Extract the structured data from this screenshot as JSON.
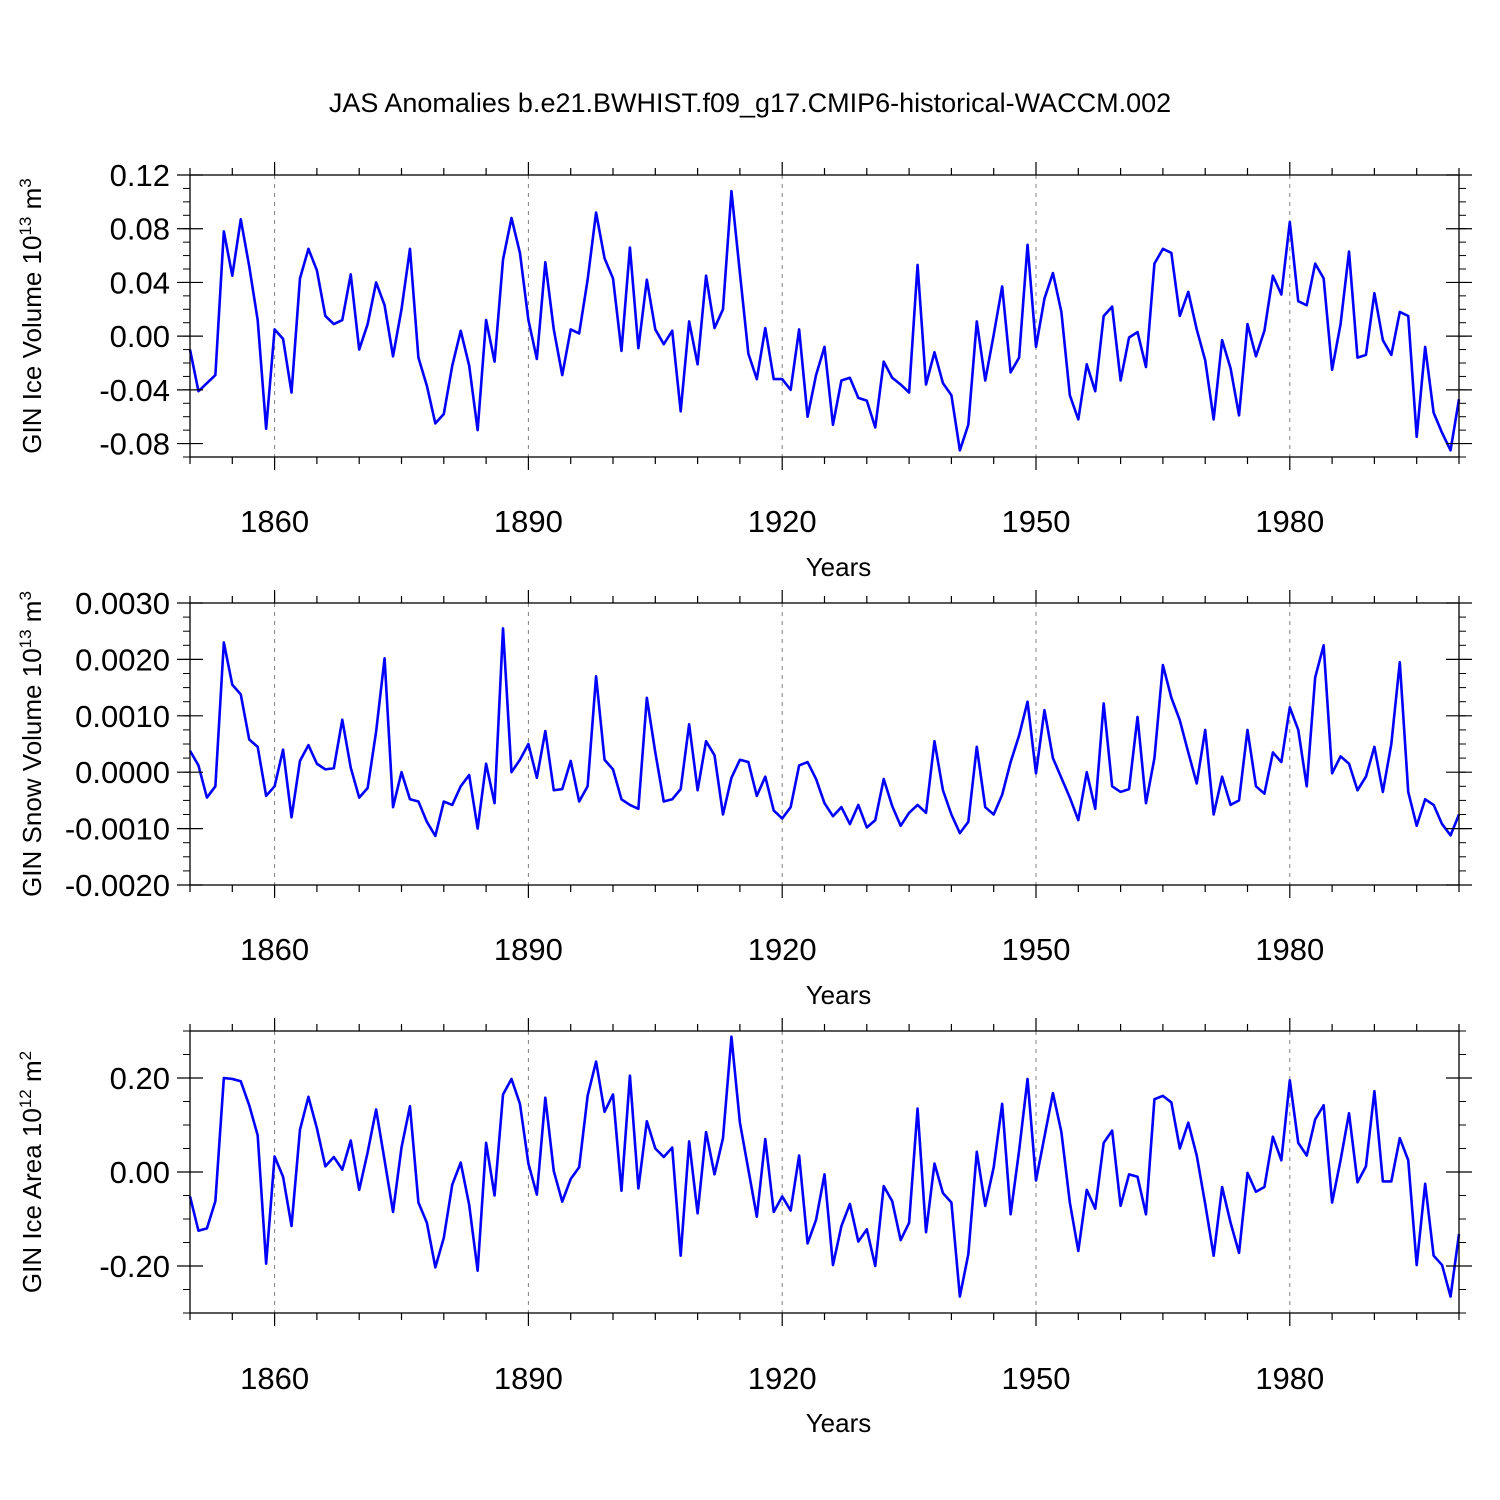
{
  "figure_title": "JAS Anomalies b.e21.BWHIST.f09_g17.CMIP6-historical-WACCM.002",
  "colors": {
    "line": "#0000ff",
    "axis": "#000000",
    "grid": "#808080",
    "background": "#ffffff"
  },
  "chart_data": [
    {
      "type": "line",
      "name": "ice-volume",
      "xlabel": "Years",
      "ylabel_text": "GIN Ice Volume 10",
      "ylabel_sup": "13",
      "ylabel_unit": " m",
      "ylabel_unit_sup": "3",
      "xlim": [
        1850,
        2000
      ],
      "ylim": [
        -0.09,
        0.12
      ],
      "x_ticks": [
        1860,
        1890,
        1920,
        1950,
        1980
      ],
      "x_tick_labels": [
        "1860",
        "1890",
        "1920",
        "1950",
        "1980"
      ],
      "y_ticks": [
        0.12,
        0.08,
        0.04,
        0.0,
        -0.04,
        -0.08
      ],
      "y_tick_labels": [
        "0.12",
        "0.08",
        "0.04",
        "0.00",
        "-0.04",
        "-0.08"
      ],
      "x_start": 1850,
      "values": [
        -0.01,
        -0.041,
        -0.035,
        -0.029,
        0.078,
        0.045,
        0.087,
        0.052,
        0.012,
        -0.069,
        0.005,
        -0.002,
        -0.042,
        0.043,
        0.065,
        0.049,
        0.015,
        0.009,
        0.012,
        0.046,
        -0.01,
        0.009,
        0.04,
        0.023,
        -0.015,
        0.02,
        0.065,
        -0.016,
        -0.037,
        -0.065,
        -0.058,
        -0.022,
        0.004,
        -0.022,
        -0.07,
        0.012,
        -0.019,
        0.057,
        0.088,
        0.062,
        0.012,
        -0.017,
        0.055,
        0.005,
        -0.029,
        0.005,
        0.002,
        0.042,
        0.092,
        0.058,
        0.043,
        -0.011,
        0.066,
        -0.009,
        0.042,
        0.005,
        -0.006,
        0.004,
        -0.056,
        0.011,
        -0.021,
        0.045,
        0.006,
        0.02,
        0.108,
        0.047,
        -0.013,
        -0.032,
        0.006,
        -0.032,
        -0.032,
        -0.04,
        0.005,
        -0.06,
        -0.029,
        -0.008,
        -0.066,
        -0.033,
        -0.031,
        -0.046,
        -0.048,
        -0.068,
        -0.019,
        -0.031,
        -0.036,
        -0.042,
        0.053,
        -0.036,
        -0.012,
        -0.035,
        -0.044,
        -0.085,
        -0.066,
        0.011,
        -0.033,
        0.001,
        0.037,
        -0.027,
        -0.016,
        0.068,
        -0.008,
        0.028,
        0.047,
        0.018,
        -0.044,
        -0.062,
        -0.021,
        -0.041,
        0.015,
        0.022,
        -0.033,
        -0.001,
        0.003,
        -0.023,
        0.054,
        0.065,
        0.062,
        0.015,
        0.033,
        0.005,
        -0.018,
        -0.062,
        -0.003,
        -0.024,
        -0.059,
        0.009,
        -0.015,
        0.004,
        0.045,
        0.031,
        0.085,
        0.026,
        0.023,
        0.054,
        0.043,
        -0.025,
        0.009,
        0.063,
        -0.016,
        -0.014,
        0.032,
        -0.003,
        -0.014,
        0.018,
        0.015,
        -0.075,
        -0.008,
        -0.057,
        -0.072,
        -0.085,
        -0.047
      ]
    },
    {
      "type": "line",
      "name": "snow-volume",
      "xlabel": "Years",
      "ylabel_text": "GIN Snow Volume 10",
      "ylabel_sup": "13",
      "ylabel_unit": " m",
      "ylabel_unit_sup": "3",
      "xlim": [
        1850,
        2000
      ],
      "ylim": [
        -0.002,
        0.003
      ],
      "x_ticks": [
        1860,
        1890,
        1920,
        1950,
        1980
      ],
      "x_tick_labels": [
        "1860",
        "1890",
        "1920",
        "1950",
        "1980"
      ],
      "y_ticks": [
        0.003,
        0.002,
        0.001,
        0.0,
        -0.001,
        -0.002
      ],
      "y_tick_labels": [
        "0.0030",
        "0.0020",
        "0.0010",
        "0.0000",
        "-0.0010",
        "-0.0020"
      ],
      "x_start": 1850,
      "values": [
        0.00038,
        0.00012,
        -0.00045,
        -0.00025,
        0.0023,
        0.00155,
        0.00138,
        0.00058,
        0.00045,
        -0.00042,
        -0.00025,
        0.0004,
        -0.0008,
        0.0002,
        0.00048,
        0.00015,
        5e-05,
        7e-05,
        0.00093,
        8e-05,
        -0.00045,
        -0.00028,
        0.00072,
        0.00202,
        -0.00062,
        0.0,
        -0.00048,
        -0.00052,
        -0.00088,
        -0.00113,
        -0.00052,
        -0.00058,
        -0.00025,
        -5e-05,
        -0.001,
        0.00015,
        -0.00055,
        0.00255,
        0.0,
        0.00022,
        0.0005,
        -0.0001,
        0.00073,
        -0.00032,
        -0.0003,
        0.0002,
        -0.00052,
        -0.00025,
        0.0017,
        0.00022,
        5e-05,
        -0.00048,
        -0.00058,
        -0.00065,
        0.00132,
        0.00035,
        -0.00052,
        -0.00048,
        -0.0003,
        0.00085,
        -0.00032,
        0.00055,
        0.0003,
        -0.00075,
        -0.0001,
        0.00022,
        0.00018,
        -0.00042,
        -8e-05,
        -0.00068,
        -0.00082,
        -0.00062,
        0.00012,
        0.00018,
        -0.00012,
        -0.00055,
        -0.00078,
        -0.00062,
        -0.00092,
        -0.00058,
        -0.00098,
        -0.00085,
        -0.00012,
        -0.0006,
        -0.00095,
        -0.00072,
        -0.00058,
        -0.00072,
        0.00055,
        -0.00032,
        -0.00075,
        -0.00108,
        -0.00088,
        0.00045,
        -0.00062,
        -0.00075,
        -0.0004,
        0.00018,
        0.00065,
        0.00125,
        -2e-05,
        0.0011,
        0.00025,
        -0.0001,
        -0.00045,
        -0.00085,
        0.0,
        -0.00065,
        0.00122,
        -0.00025,
        -0.00035,
        -0.0003,
        0.00098,
        -0.00055,
        0.00025,
        0.0019,
        0.00132,
        0.00092,
        0.00035,
        -0.0002,
        0.00075,
        -0.00075,
        -8e-05,
        -0.00058,
        -0.0005,
        0.00075,
        -0.00025,
        -0.00038,
        0.00035,
        0.00018,
        0.00115,
        0.00075,
        -0.00025,
        0.00168,
        0.00225,
        -2e-05,
        0.00028,
        0.00015,
        -0.00032,
        -8e-05,
        0.00045,
        -0.00035,
        0.0005,
        0.00195,
        -0.00035,
        -0.00095,
        -0.00048,
        -0.00058,
        -0.00092,
        -0.00112,
        -0.00075
      ]
    },
    {
      "type": "line",
      "name": "ice-area",
      "xlabel": "Years",
      "ylabel_text": "GIN Ice Area 10",
      "ylabel_sup": "12",
      "ylabel_unit": " m",
      "ylabel_unit_sup": "2",
      "xlim": [
        1850,
        2000
      ],
      "ylim": [
        -0.3,
        0.3
      ],
      "x_ticks": [
        1860,
        1890,
        1920,
        1950,
        1980
      ],
      "x_tick_labels": [
        "1860",
        "1890",
        "1920",
        "1950",
        "1980"
      ],
      "y_ticks": [
        0.2,
        0.0,
        -0.2
      ],
      "y_tick_labels": [
        "0.20",
        "0.00",
        "-0.20"
      ],
      "x_start": 1850,
      "values": [
        -0.052,
        -0.125,
        -0.12,
        -0.062,
        0.2,
        0.198,
        0.193,
        0.142,
        0.078,
        -0.195,
        0.033,
        -0.01,
        -0.115,
        0.09,
        0.16,
        0.093,
        0.012,
        0.032,
        0.005,
        0.067,
        -0.038,
        0.042,
        0.133,
        0.025,
        -0.085,
        0.052,
        0.14,
        -0.065,
        -0.108,
        -0.203,
        -0.14,
        -0.027,
        0.02,
        -0.07,
        -0.21,
        0.062,
        -0.05,
        0.165,
        0.198,
        0.145,
        0.018,
        -0.048,
        0.158,
        0.002,
        -0.063,
        -0.015,
        0.01,
        0.162,
        0.235,
        0.128,
        0.165,
        -0.04,
        0.205,
        -0.035,
        0.108,
        0.05,
        0.032,
        0.052,
        -0.178,
        0.065,
        -0.088,
        0.085,
        -0.005,
        0.072,
        0.288,
        0.105,
        0.005,
        -0.095,
        0.07,
        -0.085,
        -0.052,
        -0.082,
        0.035,
        -0.152,
        -0.102,
        -0.005,
        -0.198,
        -0.115,
        -0.068,
        -0.148,
        -0.122,
        -0.2,
        -0.03,
        -0.062,
        -0.145,
        -0.108,
        0.135,
        -0.128,
        0.018,
        -0.045,
        -0.065,
        -0.265,
        -0.175,
        0.043,
        -0.072,
        0.01,
        0.145,
        -0.09,
        0.045,
        0.198,
        -0.018,
        0.075,
        0.168,
        0.085,
        -0.065,
        -0.168,
        -0.038,
        -0.078,
        0.062,
        0.088,
        -0.072,
        -0.005,
        -0.01,
        -0.09,
        0.155,
        0.162,
        0.148,
        0.05,
        0.105,
        0.035,
        -0.068,
        -0.178,
        -0.032,
        -0.108,
        -0.172,
        -0.002,
        -0.042,
        -0.032,
        0.075,
        0.025,
        0.195,
        0.062,
        0.035,
        0.112,
        0.142,
        -0.065,
        0.025,
        0.125,
        -0.022,
        0.012,
        0.172,
        -0.02,
        -0.02,
        0.072,
        0.025,
        -0.198,
        -0.025,
        -0.178,
        -0.198,
        -0.265,
        -0.132
      ]
    }
  ]
}
